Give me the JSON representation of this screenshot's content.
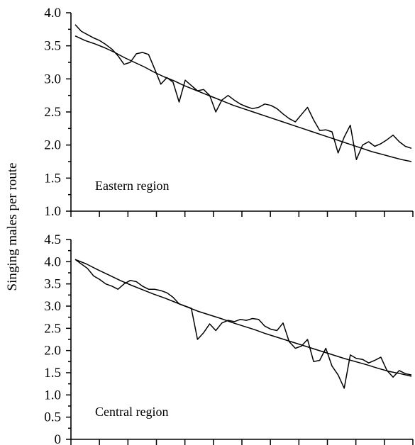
{
  "ylabel": "Singing males per route",
  "chart_data": [
    {
      "type": "line",
      "annotation": "Eastern region",
      "ylim": [
        1.0,
        4.0
      ],
      "ytick_labels": [
        "1.0",
        "1.5",
        "2.0",
        "2.5",
        "3.0",
        "3.5",
        "4.0"
      ],
      "x_tick_count": 13,
      "x_points": 56,
      "series": [
        {
          "values": [
            3.82,
            3.72,
            3.67,
            3.62,
            3.58,
            3.52,
            3.45,
            3.35,
            3.22,
            3.25,
            3.38,
            3.4,
            3.37,
            3.15,
            2.92,
            3.02,
            2.95,
            2.65,
            2.98,
            2.9,
            2.82,
            2.84,
            2.75,
            2.5,
            2.68,
            2.75,
            2.68,
            2.62,
            2.58,
            2.55,
            2.57,
            2.62,
            2.6,
            2.55,
            2.47,
            2.4,
            2.35,
            2.46,
            2.57,
            2.38,
            2.22,
            2.23,
            2.2,
            1.88,
            2.12,
            2.3,
            1.78,
            2.0,
            2.05,
            1.98,
            2.02,
            2.08,
            2.15,
            2.05,
            1.98,
            1.95
          ]
        },
        {
          "values": [
            3.65,
            3.58,
            3.53,
            3.47,
            3.4,
            3.32,
            3.25,
            3.18,
            3.1,
            3.03,
            2.97,
            2.9,
            2.84,
            2.78,
            2.72,
            2.66,
            2.6,
            2.55,
            2.5,
            2.45,
            2.4,
            2.35,
            2.3,
            2.25,
            2.2,
            2.15,
            2.1,
            2.05,
            2.0,
            1.95,
            1.9,
            1.86,
            1.82,
            1.78,
            1.75
          ]
        }
      ]
    },
    {
      "type": "line",
      "annotation": "Central region",
      "ylim": [
        0,
        4.5
      ],
      "ytick_labels": [
        "0",
        "0.5",
        "1.0",
        "1.5",
        "2.0",
        "2.5",
        "3.0",
        "3.5",
        "4.0",
        "4.5"
      ],
      "x_tick_count": 13,
      "x_points": 56,
      "series": [
        {
          "values": [
            4.05,
            3.95,
            3.85,
            3.68,
            3.6,
            3.5,
            3.45,
            3.38,
            3.5,
            3.58,
            3.55,
            3.45,
            3.38,
            3.38,
            3.35,
            3.3,
            3.2,
            3.05,
            3.0,
            2.95,
            2.25,
            2.4,
            2.6,
            2.45,
            2.62,
            2.68,
            2.65,
            2.7,
            2.68,
            2.72,
            2.7,
            2.55,
            2.48,
            2.45,
            2.62,
            2.2,
            2.05,
            2.1,
            2.25,
            1.75,
            1.78,
            2.05,
            1.65,
            1.45,
            1.15,
            1.9,
            1.82,
            1.8,
            1.72,
            1.78,
            1.85,
            1.55,
            1.4,
            1.55,
            1.48,
            1.45
          ]
        },
        {
          "values": [
            4.05,
            3.95,
            3.82,
            3.7,
            3.58,
            3.47,
            3.37,
            3.27,
            3.18,
            3.08,
            2.98,
            2.88,
            2.8,
            2.72,
            2.63,
            2.55,
            2.47,
            2.38,
            2.3,
            2.22,
            2.14,
            2.06,
            1.98,
            1.9,
            1.82,
            1.75,
            1.68,
            1.6,
            1.53,
            1.48,
            1.42
          ]
        }
      ]
    }
  ]
}
